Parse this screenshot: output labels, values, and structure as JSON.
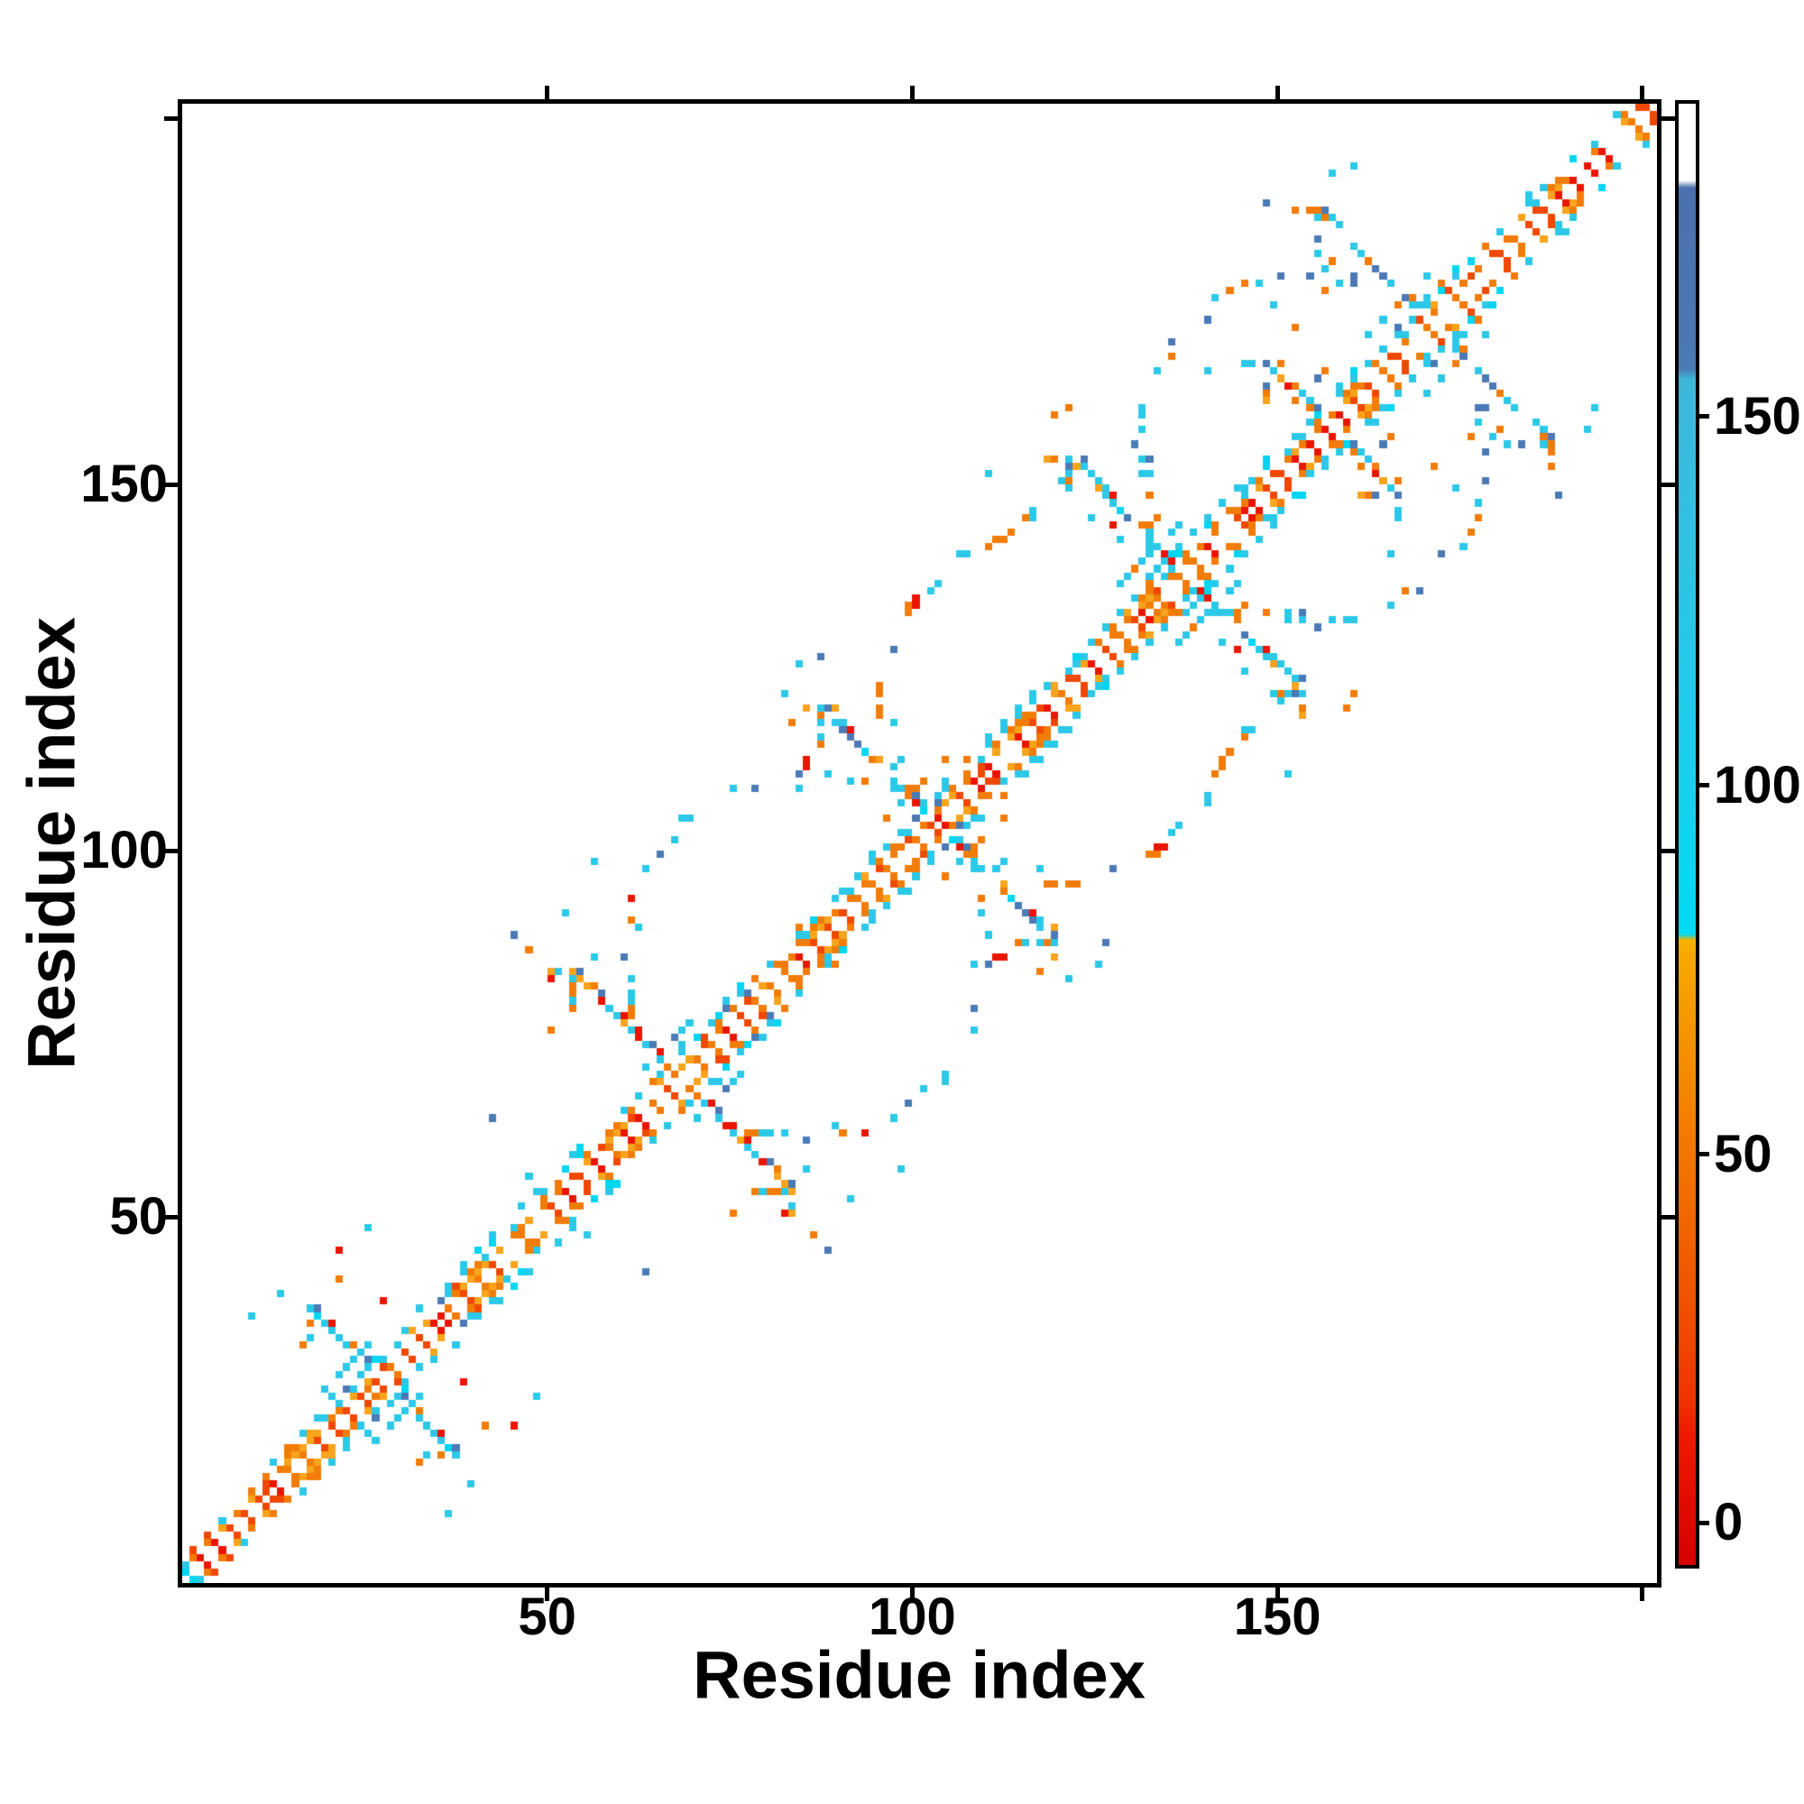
{
  "figure": {
    "background": "#FFFFFF",
    "frame_color": "#000000"
  },
  "chart_data": {
    "type": "heatmap",
    "title": "",
    "xlabel": "Residue index",
    "ylabel": "Residue index",
    "x_range": [
      0,
      202
    ],
    "y_range": [
      0,
      202
    ],
    "grid": false,
    "x_ticks": [
      {
        "value": 50,
        "label": "50"
      },
      {
        "value": 100,
        "label": "100"
      },
      {
        "value": 150,
        "label": "150"
      },
      {
        "value": 200,
        "label": ""
      }
    ],
    "y_ticks": [
      {
        "value": 50,
        "label": "50"
      },
      {
        "value": 100,
        "label": "100"
      },
      {
        "value": 150,
        "label": "150"
      },
      {
        "value": 200,
        "label": ""
      }
    ],
    "colorbar": {
      "position": "right",
      "value_range": [
        -5.7,
        192.4
      ],
      "ticks": [
        {
          "value": 0,
          "label": "0"
        },
        {
          "value": 50,
          "label": "50"
        },
        {
          "value": 100,
          "label": "100"
        },
        {
          "value": 150,
          "label": "150"
        }
      ],
      "gradient_stops": [
        {
          "v": -5.7,
          "color": "#D60000"
        },
        {
          "v": 12,
          "color": "#EE1A00"
        },
        {
          "v": 17,
          "color": "#EF3400"
        },
        {
          "v": 30,
          "color": "#F05200"
        },
        {
          "v": 48,
          "color": "#F27200"
        },
        {
          "v": 65,
          "color": "#F49200"
        },
        {
          "v": 77,
          "color": "#F7A800"
        },
        {
          "v": 79,
          "color": "#F9B200"
        },
        {
          "v": 79.8,
          "color": "#00DAF4"
        },
        {
          "v": 100,
          "color": "#18D0EE"
        },
        {
          "v": 130,
          "color": "#2EC2E4"
        },
        {
          "v": 155,
          "color": "#3EB6DA"
        },
        {
          "v": 156.5,
          "color": "#4B7AB6"
        },
        {
          "v": 181,
          "color": "#4A70AE"
        },
        {
          "v": 182,
          "color": "#FFFFFF"
        },
        {
          "v": 192.4,
          "color": "#FFFFFF"
        }
      ]
    },
    "palette": {
      "red": "#EA1400",
      "redOrange": "#F04800",
      "orange": "#F27C08",
      "amber": "#F8A41C",
      "cyan": "#2CC8E8",
      "brightCyan": "#00D5F2",
      "blue": "#4B7AB6"
    },
    "pattern": {
      "n_residues": 202,
      "description": "Symmetric residue-residue contact map: white main diagonal, checkerboard near-diagonal band (red/red-orange innermost, orange, cyan fringe, occasional steel blue), antidiagonal X-shaped helix-packing motifs along the diagonal, dotted circular arcs between consecutive motifs, sparse long-range contact dots.",
      "band_half_width": 5,
      "motifs": [
        {
          "center": 27,
          "arm": 9
        },
        {
          "center": 68,
          "arm": 14
        },
        {
          "center": 103,
          "arm": 15
        },
        {
          "center": 137,
          "arm": 15
        },
        {
          "center": 157,
          "arm": 8
        },
        {
          "center": 171,
          "arm": 15
        }
      ],
      "arc_pairs": [
        [
          68,
          103
        ],
        [
          103,
          137
        ],
        [
          137,
          171
        ]
      ],
      "blob_centers": [
        14,
        39,
        58,
        86,
        113,
        131,
        159,
        187
      ]
    }
  }
}
